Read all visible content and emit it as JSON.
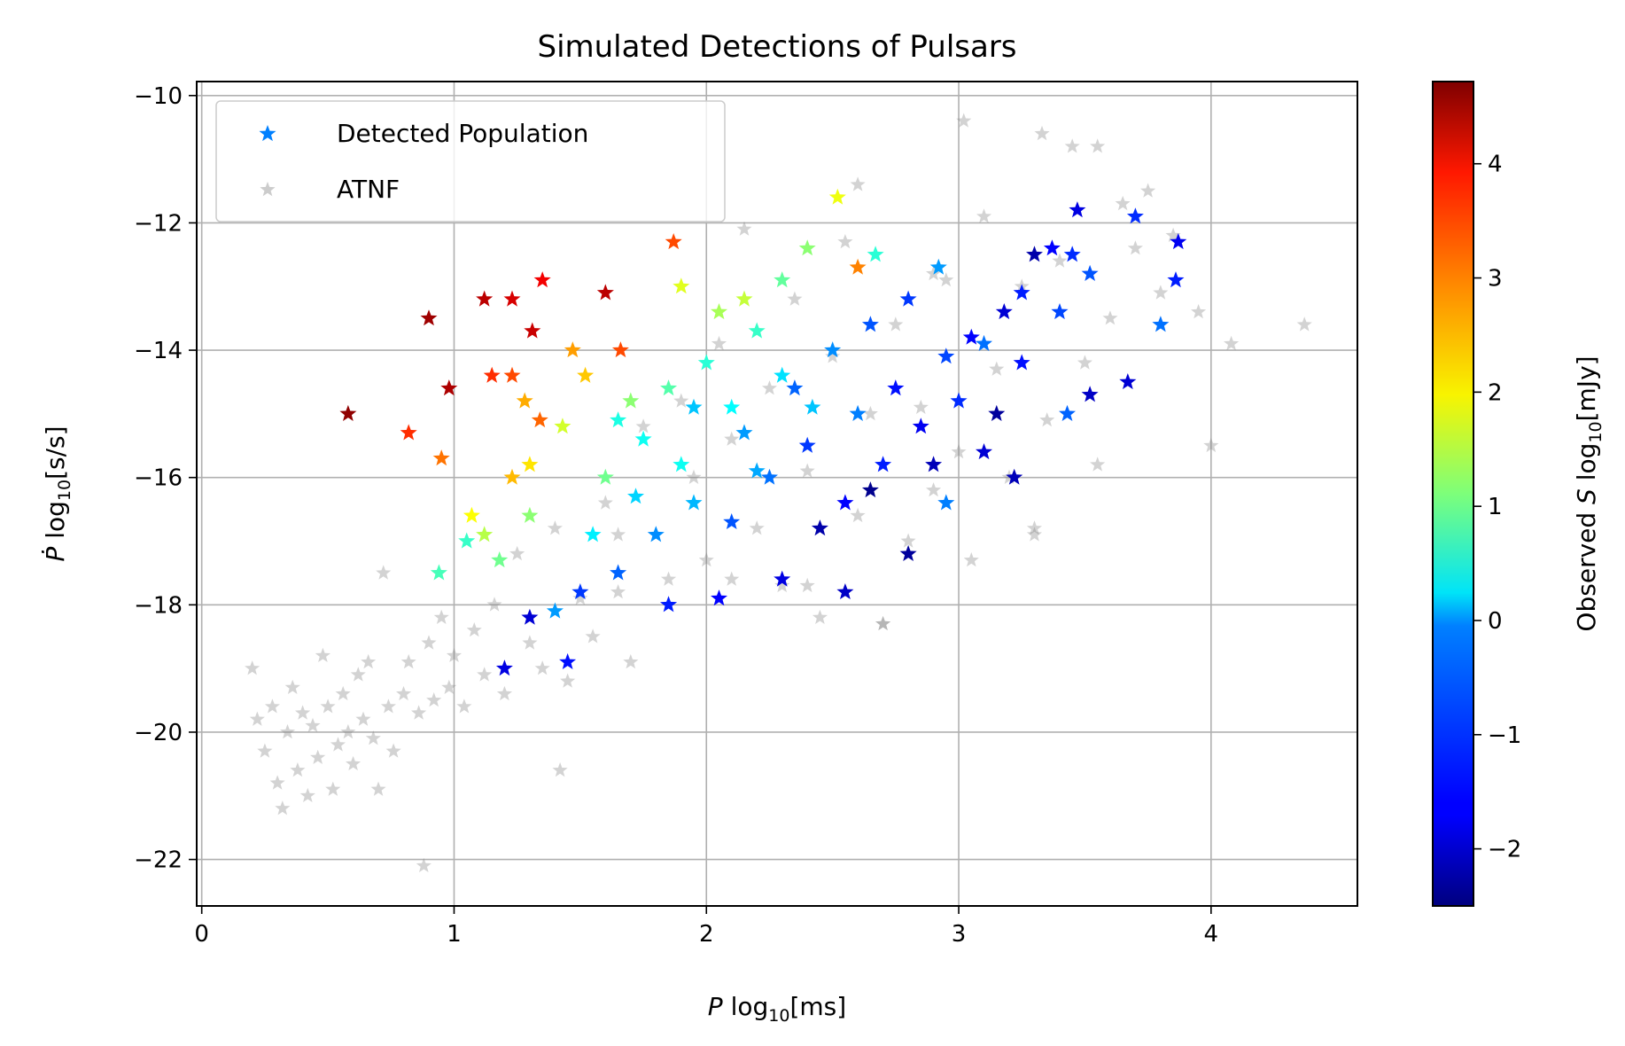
{
  "chart_data": {
    "type": "scatter",
    "title": "Simulated Detections of Pulsars",
    "xlabel": {
      "var": "P",
      "pre": " log",
      "sub": "10",
      "post": "[ms]"
    },
    "ylabel": {
      "var": "Ṗ",
      "pre": " log",
      "sub": "10",
      "post": "[s/s]"
    },
    "xlim": [
      -0.02,
      4.58
    ],
    "ylim": [
      -22.73,
      -9.78
    ],
    "xticks": [
      0,
      1,
      2,
      3,
      4
    ],
    "yticks": [
      -22,
      -20,
      -18,
      -16,
      -14,
      -12,
      -10
    ],
    "grid": true,
    "legend": {
      "placement": "top-left"
    },
    "colorbar": {
      "label": {
        "pre": "Observed ",
        "var": "S",
        "mid": " log",
        "sub": "10",
        "post": "[mJy]"
      },
      "range": [
        -2.5,
        4.72
      ],
      "ticks": [
        -2,
        -1,
        0,
        1,
        2,
        3,
        4
      ],
      "colormap": "jet"
    },
    "series": [
      {
        "name": "ATNF",
        "marker": "star",
        "color": "#808080",
        "points": [
          [
            0.2,
            -19.0
          ],
          [
            0.22,
            -19.8
          ],
          [
            0.25,
            -20.3
          ],
          [
            0.28,
            -19.6
          ],
          [
            0.3,
            -20.8
          ],
          [
            0.32,
            -21.2
          ],
          [
            0.34,
            -20.0
          ],
          [
            0.36,
            -19.3
          ],
          [
            0.38,
            -20.6
          ],
          [
            0.4,
            -19.7
          ],
          [
            0.42,
            -21.0
          ],
          [
            0.44,
            -19.9
          ],
          [
            0.46,
            -20.4
          ],
          [
            0.48,
            -18.8
          ],
          [
            0.5,
            -19.6
          ],
          [
            0.52,
            -20.9
          ],
          [
            0.54,
            -20.2
          ],
          [
            0.56,
            -19.4
          ],
          [
            0.58,
            -20.0
          ],
          [
            0.6,
            -20.5
          ],
          [
            0.62,
            -19.1
          ],
          [
            0.64,
            -19.8
          ],
          [
            0.66,
            -18.9
          ],
          [
            0.68,
            -20.1
          ],
          [
            0.7,
            -20.9
          ],
          [
            0.72,
            -17.5
          ],
          [
            0.74,
            -19.6
          ],
          [
            0.76,
            -20.3
          ],
          [
            0.8,
            -19.4
          ],
          [
            0.82,
            -18.9
          ],
          [
            0.86,
            -19.7
          ],
          [
            0.88,
            -22.1
          ],
          [
            0.9,
            -18.6
          ],
          [
            0.92,
            -19.5
          ],
          [
            0.95,
            -18.2
          ],
          [
            0.98,
            -19.3
          ],
          [
            1.0,
            -18.8
          ],
          [
            1.04,
            -19.6
          ],
          [
            1.08,
            -18.4
          ],
          [
            1.12,
            -19.1
          ],
          [
            1.16,
            -18.0
          ],
          [
            1.2,
            -19.4
          ],
          [
            1.25,
            -17.2
          ],
          [
            1.3,
            -18.6
          ],
          [
            1.35,
            -19.0
          ],
          [
            1.4,
            -16.8
          ],
          [
            1.42,
            -20.6
          ],
          [
            1.45,
            -19.2
          ],
          [
            1.5,
            -17.9
          ],
          [
            1.55,
            -18.5
          ],
          [
            1.6,
            -16.4
          ],
          [
            1.65,
            -17.8
          ],
          [
            1.7,
            -18.9
          ],
          [
            1.75,
            -15.2
          ],
          [
            1.8,
            -16.9
          ],
          [
            1.85,
            -17.6
          ],
          [
            1.9,
            -14.8
          ],
          [
            1.95,
            -16.0
          ],
          [
            2.0,
            -17.3
          ],
          [
            2.05,
            -13.9
          ],
          [
            2.1,
            -15.4
          ],
          [
            2.15,
            -12.1
          ],
          [
            2.2,
            -16.8
          ],
          [
            2.25,
            -14.6
          ],
          [
            2.3,
            -17.7
          ],
          [
            2.35,
            -13.2
          ],
          [
            2.4,
            -15.9
          ],
          [
            2.45,
            -18.2
          ],
          [
            2.5,
            -14.1
          ],
          [
            2.55,
            -12.3
          ],
          [
            2.6,
            -16.6
          ],
          [
            2.65,
            -15.0
          ],
          [
            2.7,
            -18.3
          ],
          [
            2.75,
            -13.6
          ],
          [
            2.8,
            -17.0
          ],
          [
            2.85,
            -14.9
          ],
          [
            2.9,
            -16.2
          ],
          [
            2.95,
            -12.9
          ],
          [
            3.0,
            -15.6
          ],
          [
            3.05,
            -17.3
          ],
          [
            3.1,
            -11.9
          ],
          [
            3.15,
            -14.3
          ],
          [
            3.2,
            -16.0
          ],
          [
            3.25,
            -13.0
          ],
          [
            3.3,
            -16.9
          ],
          [
            3.35,
            -15.1
          ],
          [
            3.4,
            -12.6
          ],
          [
            3.45,
            -10.8
          ],
          [
            3.5,
            -14.2
          ],
          [
            3.55,
            -15.8
          ],
          [
            3.6,
            -13.5
          ],
          [
            3.65,
            -11.7
          ],
          [
            3.7,
            -12.4
          ],
          [
            3.75,
            -11.5
          ],
          [
            3.8,
            -13.1
          ],
          [
            3.85,
            -12.2
          ],
          [
            3.95,
            -13.4
          ],
          [
            4.0,
            -15.5
          ],
          [
            4.08,
            -13.9
          ],
          [
            4.37,
            -13.6
          ],
          [
            3.02,
            -10.4
          ],
          [
            3.33,
            -10.6
          ],
          [
            3.55,
            -10.8
          ],
          [
            2.6,
            -11.4
          ],
          [
            2.9,
            -12.8
          ],
          [
            3.3,
            -16.8
          ],
          [
            1.65,
            -16.9
          ],
          [
            2.1,
            -17.6
          ],
          [
            2.4,
            -17.7
          ],
          [
            2.7,
            -18.3
          ]
        ]
      },
      {
        "name": "Detected Population",
        "marker": "star",
        "color": "#0080ff",
        "points": [
          [
            0.58,
            -15.0,
            4.6
          ],
          [
            0.9,
            -13.5,
            4.5
          ],
          [
            0.98,
            -14.6,
            4.4
          ],
          [
            1.12,
            -13.2,
            4.3
          ],
          [
            1.23,
            -13.2,
            4.1
          ],
          [
            1.31,
            -13.7,
            4.2
          ],
          [
            1.35,
            -12.9,
            3.9
          ],
          [
            1.6,
            -13.1,
            4.3
          ],
          [
            0.82,
            -15.3,
            3.5
          ],
          [
            1.15,
            -14.4,
            3.5
          ],
          [
            1.23,
            -14.4,
            3.3
          ],
          [
            0.95,
            -15.7,
            3.0
          ],
          [
            1.87,
            -12.3,
            3.3
          ],
          [
            1.66,
            -14.0,
            3.3
          ],
          [
            1.34,
            -15.1,
            3.1
          ],
          [
            1.47,
            -14.0,
            2.7
          ],
          [
            1.28,
            -14.8,
            2.6
          ],
          [
            1.52,
            -14.4,
            2.4
          ],
          [
            2.52,
            -11.6,
            1.9
          ],
          [
            1.07,
            -16.6,
            2.0
          ],
          [
            1.23,
            -16.0,
            2.5
          ],
          [
            1.3,
            -15.8,
            2.2
          ],
          [
            1.43,
            -15.2,
            1.7
          ],
          [
            0.94,
            -17.5,
            0.7
          ],
          [
            1.05,
            -17.0,
            0.6
          ],
          [
            1.12,
            -16.9,
            1.5
          ],
          [
            1.18,
            -17.3,
            1.0
          ],
          [
            1.3,
            -16.6,
            1.2
          ],
          [
            1.6,
            -16.0,
            1.0
          ],
          [
            1.7,
            -14.8,
            1.2
          ],
          [
            1.9,
            -13.0,
            1.8
          ],
          [
            2.05,
            -13.4,
            1.4
          ],
          [
            2.15,
            -13.2,
            1.6
          ],
          [
            2.3,
            -12.9,
            0.9
          ],
          [
            2.4,
            -12.4,
            1.2
          ],
          [
            2.67,
            -12.5,
            0.5
          ],
          [
            2.6,
            -12.7,
            2.9
          ],
          [
            1.75,
            -15.4,
            0.3
          ],
          [
            1.85,
            -14.6,
            0.8
          ],
          [
            2.0,
            -14.2,
            0.5
          ],
          [
            2.1,
            -14.9,
            0.2
          ],
          [
            2.2,
            -13.7,
            0.6
          ],
          [
            2.3,
            -14.4,
            0.0
          ],
          [
            1.45,
            -18.9,
            -1.5
          ],
          [
            1.2,
            -19.0,
            -1.8
          ],
          [
            1.3,
            -18.2,
            -1.9
          ],
          [
            1.5,
            -17.8,
            -1.2
          ],
          [
            1.65,
            -17.5,
            -0.9
          ],
          [
            1.8,
            -16.9,
            -0.6
          ],
          [
            1.95,
            -16.4,
            -0.3
          ],
          [
            2.1,
            -16.7,
            -1.0
          ],
          [
            2.25,
            -16.0,
            -0.8
          ],
          [
            2.4,
            -15.5,
            -1.2
          ],
          [
            2.55,
            -16.4,
            -1.6
          ],
          [
            2.7,
            -15.8,
            -1.4
          ],
          [
            2.85,
            -15.2,
            -1.7
          ],
          [
            3.0,
            -14.8,
            -1.3
          ],
          [
            3.1,
            -15.6,
            -1.9
          ],
          [
            3.25,
            -14.2,
            -1.5
          ],
          [
            3.4,
            -13.4,
            -1.1
          ],
          [
            3.47,
            -11.8,
            -1.8
          ],
          [
            3.52,
            -12.8,
            -1.0
          ],
          [
            3.7,
            -11.9,
            -1.3
          ],
          [
            3.87,
            -12.3,
            -1.7
          ],
          [
            3.86,
            -12.9,
            -1.4
          ],
          [
            3.8,
            -13.6,
            -0.8
          ],
          [
            3.67,
            -14.5,
            -1.9
          ],
          [
            3.52,
            -14.7,
            -2.0
          ],
          [
            3.43,
            -15.0,
            -0.9
          ],
          [
            3.22,
            -16.0,
            -2.1
          ],
          [
            2.95,
            -16.4,
            -0.7
          ],
          [
            2.8,
            -17.2,
            -2.3
          ],
          [
            2.55,
            -17.8,
            -2.0
          ],
          [
            2.3,
            -17.6,
            -1.8
          ],
          [
            2.05,
            -17.9,
            -1.6
          ],
          [
            1.85,
            -18.0,
            -1.4
          ],
          [
            1.4,
            -18.1,
            -0.5
          ],
          [
            1.65,
            -15.1,
            0.4
          ],
          [
            1.95,
            -14.9,
            -0.2
          ],
          [
            2.15,
            -15.3,
            -0.5
          ],
          [
            2.35,
            -14.6,
            -0.9
          ],
          [
            2.5,
            -14.0,
            -0.6
          ],
          [
            2.65,
            -13.6,
            -1.0
          ],
          [
            2.8,
            -13.2,
            -1.2
          ],
          [
            2.92,
            -12.7,
            -0.5
          ],
          [
            3.05,
            -13.8,
            -1.6
          ],
          [
            3.18,
            -13.4,
            -1.9
          ],
          [
            3.3,
            -12.5,
            -2.2
          ],
          [
            3.37,
            -12.4,
            -1.6
          ],
          [
            3.45,
            -12.5,
            -1.3
          ],
          [
            2.45,
            -16.8,
            -2.2
          ],
          [
            2.65,
            -16.2,
            -2.4
          ],
          [
            2.9,
            -15.8,
            -2.1
          ],
          [
            3.15,
            -15.0,
            -2.3
          ],
          [
            1.55,
            -16.9,
            0.1
          ],
          [
            1.72,
            -16.3,
            -0.1
          ],
          [
            1.9,
            -15.8,
            0.3
          ],
          [
            2.2,
            -15.9,
            -0.4
          ],
          [
            2.42,
            -14.9,
            -0.2
          ],
          [
            2.6,
            -15.0,
            -0.7
          ],
          [
            2.75,
            -14.6,
            -1.5
          ],
          [
            2.95,
            -14.1,
            -1.1
          ],
          [
            3.1,
            -13.9,
            -0.8
          ],
          [
            3.25,
            -13.1,
            -1.4
          ]
        ]
      }
    ]
  }
}
